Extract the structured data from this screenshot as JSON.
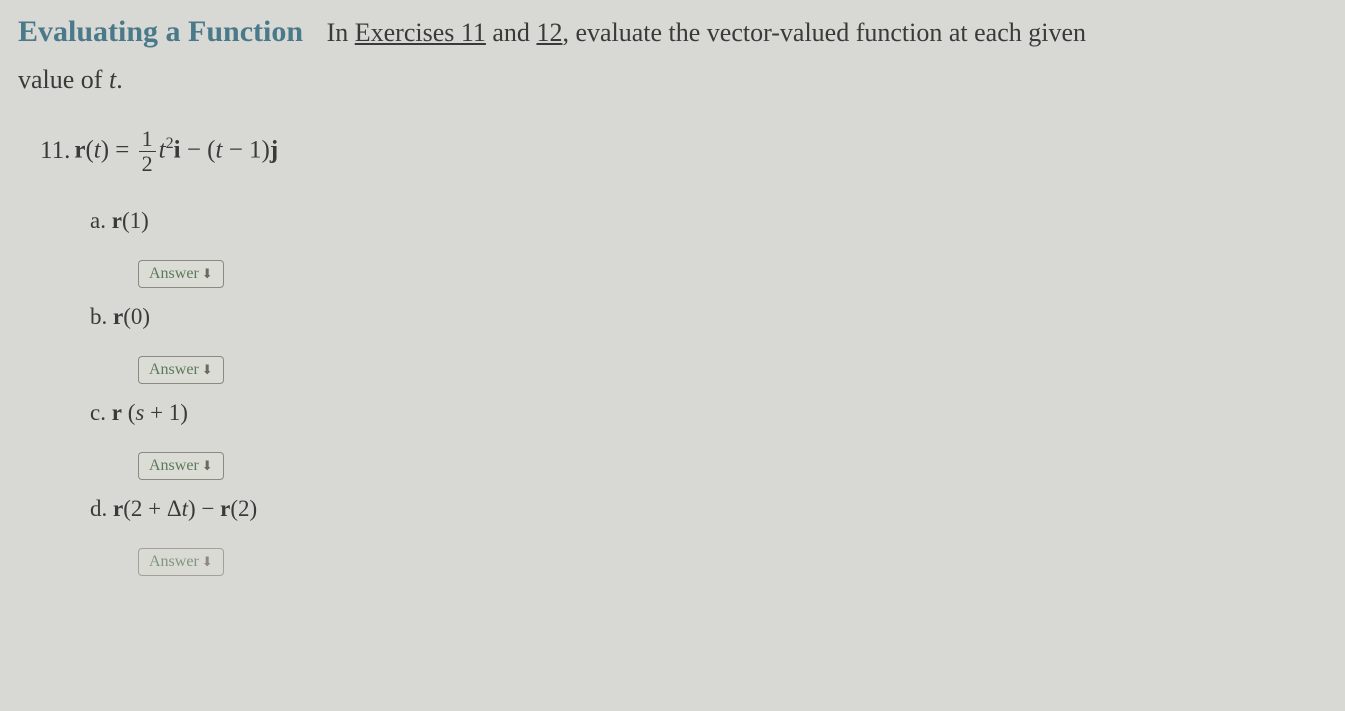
{
  "header": {
    "section_title": "Evaluating a Function",
    "instruction_prefix": "In ",
    "link1": "Exercises 11",
    "and_text": " and ",
    "link2": "12",
    "instruction_suffix": ", evaluate the vector-valued function at each given",
    "second_line_prefix": "value of ",
    "variable": "t",
    "period": "."
  },
  "problem": {
    "number": "11. ",
    "r_of_t": "r",
    "open_paren": "(",
    "t_var": "t",
    "close_paren": ") = ",
    "frac_num": "1",
    "frac_den": "2",
    "t_squared_t": "t",
    "t_squared_exp": "2",
    "i_vec": "i",
    "minus": " − (",
    "t_minus_1": "t",
    "minus_1": " − 1)",
    "j_vec": "j"
  },
  "subparts": {
    "a": {
      "label_letter": "a. ",
      "r": "r",
      "arg": "(1)"
    },
    "b": {
      "label_letter": "b. ",
      "r": "r",
      "arg": "(0)"
    },
    "c": {
      "label_letter": "c. ",
      "r": "r",
      "arg_open": " (",
      "s": "s",
      "arg_close": " + 1)"
    },
    "d": {
      "label_letter": "d. ",
      "r1": "r",
      "arg1_open": "(2 + Δ",
      "delta_t": "t",
      "arg1_close": ") − ",
      "r2": "r",
      "arg2": "(2)"
    }
  },
  "answer_button": {
    "label": "Answer",
    "arrow": "⬇"
  },
  "colors": {
    "background": "#d8d8d4",
    "title": "#4a7a8a",
    "text": "#3a3a38",
    "button_text": "#5a7a5a",
    "button_border": "#8a8a80"
  }
}
